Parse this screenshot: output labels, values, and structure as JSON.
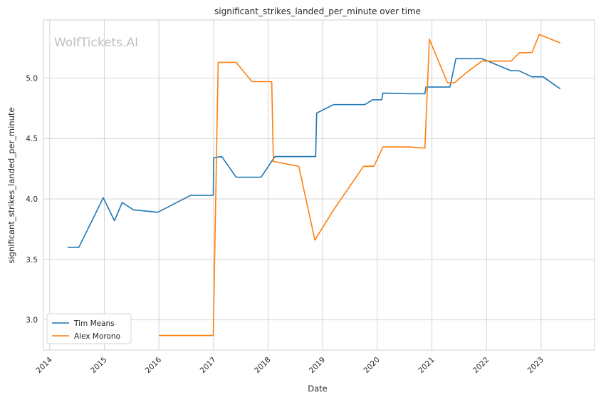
{
  "chart_data": {
    "type": "line",
    "title": "significant_strikes_landed_per_minute over time",
    "xlabel": "Date",
    "ylabel": "significant_strikes_landed_per_minute",
    "watermark": "WolfTickets.AI",
    "xlim": [
      "2013-11-20",
      "2023-12-25"
    ],
    "ylim": [
      2.75,
      5.48
    ],
    "x_ticks": [
      "2014",
      "2015",
      "2016",
      "2017",
      "2018",
      "2019",
      "2020",
      "2021",
      "2022",
      "2023"
    ],
    "y_ticks": [
      "3.0",
      "3.5",
      "4.0",
      "4.5",
      "5.0"
    ],
    "grid": true,
    "legend_position": "lower-left",
    "series": [
      {
        "name": "Tim Means",
        "color": "#1f77b4",
        "x": [
          "2014-05-01",
          "2014-07-15",
          "2014-12-25",
          "2015-03-10",
          "2015-05-01",
          "2015-07-15",
          "2015-12-25",
          "2016-08-01",
          "2016-12-30",
          "2017-01-02",
          "2017-02-25",
          "2017-06-01",
          "2017-09-15",
          "2017-11-15",
          "2018-02-15",
          "2018-11-15",
          "2018-11-22",
          "2019-03-15",
          "2019-10-10",
          "2019-12-01",
          "2020-01-31",
          "2020-02-08",
          "2020-08-05",
          "2020-11-15",
          "2020-11-22",
          "2021-05-01",
          "2021-06-10",
          "2021-12-01",
          "2022-06-15",
          "2022-08-05",
          "2022-11-01",
          "2023-01-15",
          "2023-05-10"
        ],
        "y": [
          3.6,
          3.6,
          4.01,
          3.82,
          3.97,
          3.91,
          3.89,
          4.03,
          4.03,
          4.34,
          4.35,
          4.18,
          4.18,
          4.18,
          4.35,
          4.35,
          4.71,
          4.78,
          4.78,
          4.82,
          4.82,
          4.875,
          4.87,
          4.87,
          4.925,
          4.925,
          5.16,
          5.16,
          5.06,
          5.06,
          5.01,
          5.01,
          4.91
        ]
      },
      {
        "name": "Alex Morono",
        "color": "#ff7f0e",
        "x": [
          "2016-01-01",
          "2016-12-30",
          "2017-02-01",
          "2017-06-01",
          "2017-09-15",
          "2018-01-25",
          "2018-02-05",
          "2018-07-25",
          "2018-11-10",
          "2019-03-15",
          "2019-10-01",
          "2019-12-10",
          "2020-02-08",
          "2020-08-01",
          "2020-11-15",
          "2020-12-15",
          "2021-04-15",
          "2021-06-01",
          "2021-08-15",
          "2021-12-01",
          "2022-06-15",
          "2022-08-10",
          "2022-11-01",
          "2022-12-20",
          "2023-05-10"
        ],
        "y": [
          2.87,
          2.87,
          5.13,
          5.13,
          4.97,
          4.97,
          4.31,
          4.27,
          3.66,
          3.91,
          4.27,
          4.27,
          4.43,
          4.43,
          4.42,
          5.32,
          4.96,
          4.96,
          5.04,
          5.14,
          5.14,
          5.21,
          5.21,
          5.36,
          5.29
        ]
      }
    ]
  }
}
